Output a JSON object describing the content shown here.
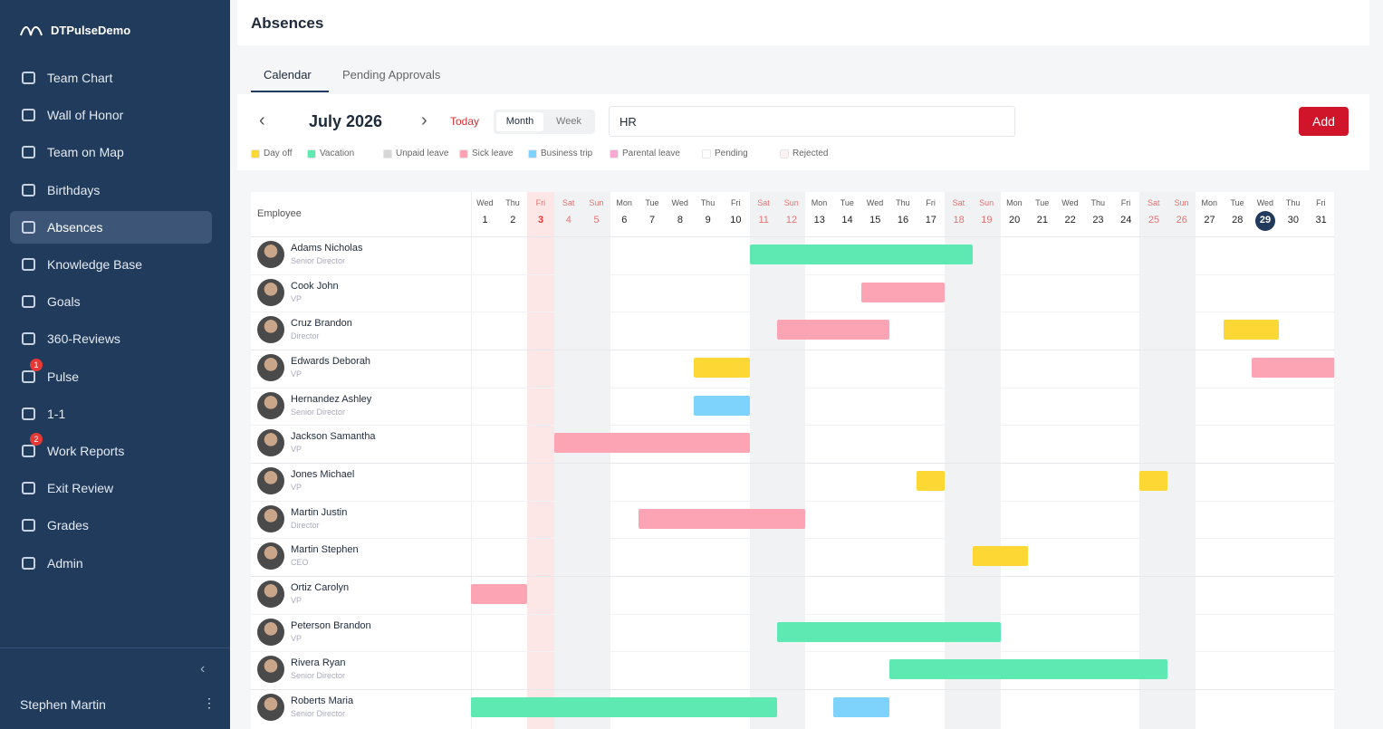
{
  "brand": "DTPulseDemo",
  "nav": [
    {
      "label": "Team Chart"
    },
    {
      "label": "Wall of Honor"
    },
    {
      "label": "Team on Map"
    },
    {
      "label": "Birthdays"
    },
    {
      "label": "Absences",
      "active": true
    },
    {
      "label": "Knowledge Base"
    },
    {
      "label": "Goals"
    },
    {
      "label": "360-Reviews"
    },
    {
      "label": "Pulse",
      "badge": 1
    },
    {
      "label": "1-1"
    },
    {
      "label": "Work Reports",
      "badge": 2
    },
    {
      "label": "Exit Review"
    },
    {
      "label": "Grades"
    },
    {
      "label": "Admin"
    }
  ],
  "user": "Stephen Martin",
  "header": {
    "title": "Absences"
  },
  "tabs": [
    {
      "label": "Calendar",
      "active": true
    },
    {
      "label": "Pending Approvals"
    }
  ],
  "toolbar": {
    "period": "July 2026",
    "today": "Today",
    "views": [
      {
        "label": "Month",
        "active": true
      },
      {
        "label": "Week"
      }
    ],
    "search": "HR",
    "add": "Add"
  },
  "legend": [
    {
      "name": "Day off",
      "color": "#fdd835"
    },
    {
      "name": "Vacation",
      "color": "#5ee8b2"
    },
    {
      "name": "Unpaid leave",
      "color": "#d6d6d6"
    },
    {
      "name": "Sick leave",
      "color": "#fda4b4"
    },
    {
      "name": "Business trip",
      "color": "#7dd3fc"
    },
    {
      "name": "Parental leave",
      "color": "#f9a8d4"
    },
    {
      "name": "Pending",
      "color": "#ffffff"
    },
    {
      "name": "Rejected",
      "color": "#fff0f2"
    }
  ],
  "grid": {
    "employee_header": "Employee",
    "days": [
      {
        "weekday": "Wed",
        "day": 1
      },
      {
        "weekday": "Thu",
        "day": 2
      },
      {
        "weekday": "Fri",
        "day": 3,
        "holiday": true
      },
      {
        "weekday": "Sat",
        "day": 4,
        "weekend": true
      },
      {
        "weekday": "Sun",
        "day": 5,
        "weekend": true
      },
      {
        "weekday": "Mon",
        "day": 6
      },
      {
        "weekday": "Tue",
        "day": 7
      },
      {
        "weekday": "Wed",
        "day": 8
      },
      {
        "weekday": "Thu",
        "day": 9
      },
      {
        "weekday": "Fri",
        "day": 10
      },
      {
        "weekday": "Sat",
        "day": 11,
        "weekend": true
      },
      {
        "weekday": "Sun",
        "day": 12,
        "weekend": true
      },
      {
        "weekday": "Mon",
        "day": 13
      },
      {
        "weekday": "Tue",
        "day": 14
      },
      {
        "weekday": "Wed",
        "day": 15
      },
      {
        "weekday": "Thu",
        "day": 16
      },
      {
        "weekday": "Fri",
        "day": 17
      },
      {
        "weekday": "Sat",
        "day": 18,
        "weekend": true
      },
      {
        "weekday": "Sun",
        "day": 19,
        "weekend": true
      },
      {
        "weekday": "Mon",
        "day": 20
      },
      {
        "weekday": "Tue",
        "day": 21
      },
      {
        "weekday": "Wed",
        "day": 22
      },
      {
        "weekday": "Thu",
        "day": 23
      },
      {
        "weekday": "Fri",
        "day": 24
      },
      {
        "weekday": "Sat",
        "day": 25,
        "weekend": true
      },
      {
        "weekday": "Sun",
        "day": 26,
        "weekend": true
      },
      {
        "weekday": "Mon",
        "day": 27
      },
      {
        "weekday": "Tue",
        "day": 28
      },
      {
        "weekday": "Wed",
        "day": 29,
        "today": true
      },
      {
        "weekday": "Thu",
        "day": 30
      },
      {
        "weekday": "Fri",
        "day": 31
      }
    ],
    "employees": [
      {
        "name": "Adams Nicholas",
        "title": "Senior Director",
        "absences": [
          {
            "type": "Vacation",
            "start": 11,
            "end": 18
          }
        ]
      },
      {
        "name": "Cook John",
        "title": "VP",
        "absences": [
          {
            "type": "Sick leave",
            "start": 15,
            "end": 17
          }
        ]
      },
      {
        "name": "Cruz Brandon",
        "title": "Director",
        "absences": [
          {
            "type": "Sick leave",
            "start": 12,
            "end": 15
          },
          {
            "type": "Day off",
            "start": 28,
            "end": 29
          }
        ]
      },
      {
        "name": "Edwards Deborah",
        "title": "VP",
        "absences": [
          {
            "type": "Day off",
            "start": 9,
            "end": 10
          },
          {
            "type": "Sick leave",
            "start": 29,
            "end": 31
          }
        ]
      },
      {
        "name": "Hernandez Ashley",
        "title": "Senior Director",
        "absences": [
          {
            "type": "Business trip",
            "start": 9,
            "end": 10
          }
        ]
      },
      {
        "name": "Jackson Samantha",
        "title": "VP",
        "absences": [
          {
            "type": "Sick leave",
            "start": 4,
            "end": 10
          }
        ]
      },
      {
        "name": "Jones Michael",
        "title": "VP",
        "absences": [
          {
            "type": "Day off",
            "start": 17,
            "end": 17
          },
          {
            "type": "Day off",
            "start": 25,
            "end": 25
          }
        ]
      },
      {
        "name": "Martin Justin",
        "title": "Director",
        "absences": [
          {
            "type": "Sick leave",
            "start": 7,
            "end": 12
          }
        ]
      },
      {
        "name": "Martin Stephen",
        "title": "CEO",
        "absences": [
          {
            "type": "Day off",
            "start": 19,
            "end": 20
          }
        ]
      },
      {
        "name": "Ortiz Carolyn",
        "title": "VP",
        "absences": [
          {
            "type": "Sick leave",
            "start": 1,
            "end": 2
          }
        ]
      },
      {
        "name": "Peterson Brandon",
        "title": "VP",
        "absences": [
          {
            "type": "Vacation",
            "start": 12,
            "end": 19
          }
        ]
      },
      {
        "name": "Rivera Ryan",
        "title": "Senior Director",
        "absences": [
          {
            "type": "Vacation",
            "start": 16,
            "end": 25
          }
        ]
      },
      {
        "name": "Roberts Maria",
        "title": "Senior Director",
        "absences": [
          {
            "type": "Vacation",
            "start": 1,
            "end": 11
          },
          {
            "type": "Business trip",
            "start": 14,
            "end": 15
          }
        ]
      }
    ]
  }
}
